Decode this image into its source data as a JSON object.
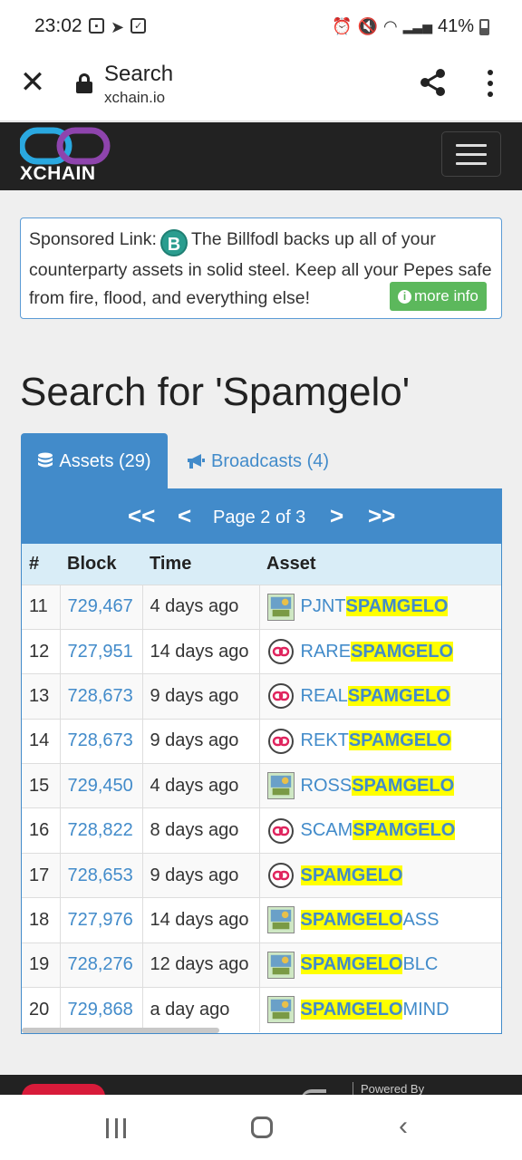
{
  "status_bar": {
    "time": "23:02",
    "battery": "41%",
    "icons_left": [
      "gallery-icon",
      "telegram-icon",
      "check-icon"
    ],
    "icons_right": [
      "alarm-icon",
      "mute-icon",
      "wifi-icon",
      "signal-icon",
      "battery-icon"
    ]
  },
  "browser": {
    "title": "Search",
    "domain": "xchain.io"
  },
  "site": {
    "logo_text": "XCHAIN"
  },
  "sponsor": {
    "prefix": "Sponsored Link:",
    "icon_letter": "B",
    "text": "The Billfodl backs up all of your counterparty assets in solid steel. Keep all your Pepes safe from fire, flood, and everything else!",
    "button": "more info"
  },
  "page_title": "Search for 'Spamgelo'",
  "tabs": {
    "assets": "Assets (29)",
    "broadcasts": "Broadcasts (4)"
  },
  "pager": {
    "label": "Page 2 of 3",
    "first": "<<",
    "prev": "<",
    "next": ">",
    "last": ">>"
  },
  "table": {
    "headers": [
      "#",
      "Block",
      "Time",
      "Asset"
    ],
    "rows": [
      {
        "n": "11",
        "block": "729,467",
        "time": "4 days ago",
        "pre": "PJNT",
        "hl": "SPAMGELO",
        "post": "",
        "icon": "image"
      },
      {
        "n": "12",
        "block": "727,951",
        "time": "14 days ago",
        "pre": "RARE",
        "hl": "SPAMGELO",
        "post": "",
        "icon": "chain"
      },
      {
        "n": "13",
        "block": "728,673",
        "time": "9 days ago",
        "pre": "REAL",
        "hl": "SPAMGELO",
        "post": "",
        "icon": "chain"
      },
      {
        "n": "14",
        "block": "728,673",
        "time": "9 days ago",
        "pre": "REKT",
        "hl": "SPAMGELO",
        "post": "",
        "icon": "chain"
      },
      {
        "n": "15",
        "block": "729,450",
        "time": "4 days ago",
        "pre": "ROSS",
        "hl": "SPAMGELO",
        "post": "",
        "icon": "image"
      },
      {
        "n": "16",
        "block": "728,822",
        "time": "8 days ago",
        "pre": "SCAM",
        "hl": "SPAMGELO",
        "post": "",
        "icon": "chain"
      },
      {
        "n": "17",
        "block": "728,653",
        "time": "9 days ago",
        "pre": "",
        "hl": "SPAMGELO",
        "post": "",
        "icon": "chain"
      },
      {
        "n": "18",
        "block": "727,976",
        "time": "14 days ago",
        "pre": "",
        "hl": "SPAMGELO",
        "post": "ASS",
        "icon": "image"
      },
      {
        "n": "19",
        "block": "728,276",
        "time": "12 days ago",
        "pre": "",
        "hl": "SPAMGELO",
        "post": "BLC",
        "icon": "image"
      },
      {
        "n": "20",
        "block": "729,868",
        "time": "a day ago",
        "pre": "",
        "hl": "SPAMGELO",
        "post": "MIND",
        "icon": "image"
      }
    ]
  },
  "footer": {
    "powered": "Powered By"
  },
  "colors": {
    "brand_blue": "#428bca",
    "highlight": "#ffff00",
    "success": "#5cb85c",
    "navbar": "#222222"
  }
}
